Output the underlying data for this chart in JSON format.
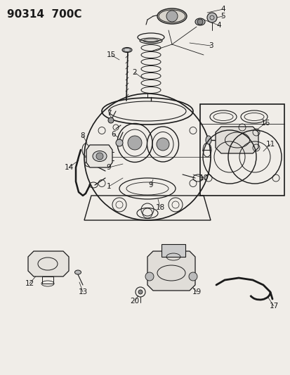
{
  "title": "90314  700C",
  "bg_color": "#f0ede8",
  "line_color": "#1a1a1a",
  "title_fontsize": 11,
  "label_fontsize": 7.5,
  "fig_width": 4.14,
  "fig_height": 5.33,
  "dpi": 100
}
